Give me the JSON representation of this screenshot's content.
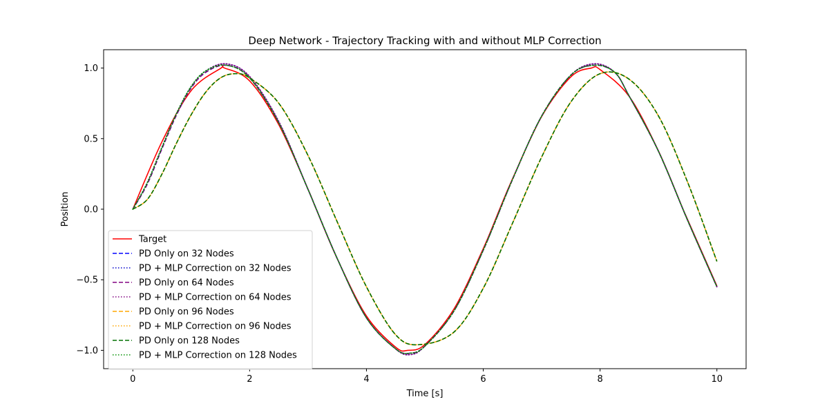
{
  "chart_data": {
    "type": "line",
    "title": "Deep Network - Trajectory Tracking with and without MLP Correction",
    "xlabel": "Time [s]",
    "ylabel": "Position",
    "xlim": [
      -0.5,
      10.5
    ],
    "ylim": [
      -1.13,
      1.13
    ],
    "xticks": [
      0,
      2,
      4,
      6,
      8,
      10
    ],
    "yticks": [
      -1.0,
      -0.5,
      0.0,
      0.5,
      1.0
    ],
    "xtick_labels": [
      "0",
      "2",
      "4",
      "6",
      "8",
      "10"
    ],
    "ytick_labels": [
      "−1.0",
      "−0.5",
      "0.0",
      "0.5",
      "1.0"
    ],
    "legend_position": "lower-left",
    "grid": false,
    "series": [
      {
        "name": "Target",
        "color": "#ff0000",
        "style": "solid",
        "x": [
          0,
          0.5,
          1,
          1.5,
          1.57,
          2,
          2.5,
          3,
          3.14,
          3.5,
          4,
          4.5,
          4.71,
          5,
          5.5,
          6,
          6.28,
          6.5,
          7,
          7.5,
          7.85,
          8,
          8.5,
          9,
          9.42,
          9.5,
          10
        ],
        "y": [
          0,
          0.479,
          0.841,
          0.997,
          1.0,
          0.909,
          0.598,
          0.141,
          0.0,
          -0.351,
          -0.757,
          -0.978,
          -1.0,
          -0.959,
          -0.706,
          -0.279,
          0.0,
          0.215,
          0.657,
          0.938,
          1.0,
          0.989,
          0.798,
          0.412,
          0.0,
          -0.075,
          -0.544
        ]
      },
      {
        "name": "PD Only on 32 Nodes",
        "color": "#0000ff",
        "style": "dashed",
        "x": [
          0,
          0.25,
          0.5,
          0.75,
          1,
          1.25,
          1.6,
          2,
          2.5,
          3,
          3.5,
          4,
          4.5,
          4.75,
          5,
          5.5,
          6,
          6.5,
          7,
          7.5,
          7.9,
          8.25,
          8.5,
          9,
          9.5,
          10
        ],
        "y": [
          0,
          0.18,
          0.43,
          0.67,
          0.86,
          0.97,
          1.02,
          0.93,
          0.61,
          0.14,
          -0.35,
          -0.77,
          -0.99,
          -1.02,
          -0.97,
          -0.72,
          -0.29,
          0.21,
          0.66,
          0.95,
          1.02,
          0.97,
          0.8,
          0.41,
          -0.08,
          -0.55
        ]
      },
      {
        "name": "PD + MLP Correction on 32 Nodes",
        "color": "#0000cc",
        "style": "dotted",
        "x": [
          0,
          0.25,
          0.5,
          0.75,
          1,
          1.25,
          1.6,
          2,
          2.5,
          3,
          3.5,
          4,
          4.5,
          4.75,
          5,
          5.5,
          6,
          6.5,
          7,
          7.5,
          7.9,
          8.25,
          8.5,
          9,
          9.5,
          10
        ],
        "y": [
          0,
          0.19,
          0.44,
          0.68,
          0.87,
          0.98,
          1.03,
          0.94,
          0.62,
          0.14,
          -0.35,
          -0.77,
          -0.99,
          -1.03,
          -0.97,
          -0.72,
          -0.29,
          0.21,
          0.66,
          0.95,
          1.03,
          0.97,
          0.8,
          0.41,
          -0.08,
          -0.55
        ]
      },
      {
        "name": "PD Only on 64 Nodes",
        "color": "#800080",
        "style": "dashed",
        "x": [
          0,
          0.25,
          0.5,
          0.75,
          1,
          1.25,
          1.6,
          2,
          2.5,
          3,
          3.5,
          4,
          4.5,
          4.75,
          5,
          5.5,
          6,
          6.5,
          7,
          7.5,
          7.9,
          8.25,
          8.5,
          9,
          9.5,
          10
        ],
        "y": [
          0,
          0.18,
          0.43,
          0.67,
          0.86,
          0.97,
          1.02,
          0.93,
          0.61,
          0.14,
          -0.35,
          -0.77,
          -0.99,
          -1.02,
          -0.97,
          -0.72,
          -0.29,
          0.21,
          0.66,
          0.95,
          1.02,
          0.97,
          0.8,
          0.41,
          -0.08,
          -0.55
        ]
      },
      {
        "name": "PD + MLP Correction on 64 Nodes",
        "color": "#800080",
        "style": "dotted",
        "x": [
          0,
          0.25,
          0.5,
          0.75,
          1,
          1.25,
          1.6,
          2,
          2.5,
          3,
          3.5,
          4,
          4.5,
          4.75,
          5,
          5.5,
          6,
          6.5,
          7,
          7.5,
          7.9,
          8.25,
          8.5,
          9,
          9.5,
          10
        ],
        "y": [
          0,
          0.19,
          0.44,
          0.68,
          0.87,
          0.98,
          1.03,
          0.94,
          0.62,
          0.14,
          -0.35,
          -0.77,
          -0.99,
          -1.03,
          -0.97,
          -0.72,
          -0.29,
          0.21,
          0.66,
          0.95,
          1.03,
          0.97,
          0.8,
          0.41,
          -0.08,
          -0.55
        ]
      },
      {
        "name": "PD Only on 96 Nodes",
        "color": "#ffa500",
        "style": "dashed",
        "x": [
          0,
          0.25,
          0.5,
          0.75,
          1,
          1.25,
          1.5,
          1.75,
          2,
          2.5,
          3,
          3.5,
          4,
          4.5,
          4.9,
          5.5,
          6,
          6.5,
          7,
          7.5,
          8,
          8.5,
          9,
          9.5,
          10
        ],
        "y": [
          0,
          0.07,
          0.25,
          0.47,
          0.67,
          0.83,
          0.93,
          0.96,
          0.93,
          0.75,
          0.38,
          -0.09,
          -0.55,
          -0.89,
          -0.96,
          -0.87,
          -0.56,
          -0.1,
          0.37,
          0.76,
          0.96,
          0.92,
          0.66,
          0.19,
          -0.37
        ]
      },
      {
        "name": "PD + MLP Correction on 96 Nodes",
        "color": "#ffa500",
        "style": "dotted",
        "x": [
          0,
          0.25,
          0.5,
          0.75,
          1,
          1.25,
          1.5,
          1.75,
          2,
          2.5,
          3,
          3.5,
          4,
          4.5,
          4.9,
          5.5,
          6,
          6.5,
          7,
          7.5,
          8,
          8.5,
          9,
          9.5,
          10
        ],
        "y": [
          0,
          0.07,
          0.25,
          0.47,
          0.67,
          0.83,
          0.93,
          0.96,
          0.93,
          0.75,
          0.38,
          -0.09,
          -0.55,
          -0.89,
          -0.96,
          -0.87,
          -0.56,
          -0.1,
          0.37,
          0.76,
          0.96,
          0.92,
          0.66,
          0.19,
          -0.37
        ]
      },
      {
        "name": "PD Only on 128 Nodes",
        "color": "#007000",
        "style": "dashed",
        "x": [
          0,
          0.25,
          0.5,
          0.75,
          1,
          1.25,
          1.5,
          1.75,
          2,
          2.5,
          3,
          3.5,
          4,
          4.5,
          4.9,
          5.5,
          6,
          6.5,
          7,
          7.5,
          8,
          8.5,
          9,
          9.5,
          10
        ],
        "y": [
          0,
          0.07,
          0.25,
          0.47,
          0.67,
          0.83,
          0.93,
          0.96,
          0.93,
          0.75,
          0.38,
          -0.09,
          -0.55,
          -0.89,
          -0.96,
          -0.87,
          -0.56,
          -0.1,
          0.37,
          0.76,
          0.96,
          0.92,
          0.66,
          0.19,
          -0.37
        ]
      },
      {
        "name": "PD + MLP Correction on 128 Nodes",
        "color": "#009000",
        "style": "dotted",
        "x": [
          0,
          0.25,
          0.5,
          0.75,
          1,
          1.25,
          1.6,
          2,
          2.5,
          3,
          3.5,
          4,
          4.5,
          4.75,
          5,
          5.5,
          6,
          6.5,
          7,
          7.5,
          7.9,
          8.25,
          8.5,
          9,
          9.5,
          10
        ],
        "y": [
          0,
          0.19,
          0.44,
          0.68,
          0.87,
          0.98,
          1.02,
          0.93,
          0.61,
          0.14,
          -0.35,
          -0.77,
          -0.99,
          -1.02,
          -0.97,
          -0.72,
          -0.29,
          0.21,
          0.66,
          0.95,
          1.02,
          0.97,
          0.8,
          0.41,
          -0.08,
          -0.55
        ]
      }
    ]
  }
}
